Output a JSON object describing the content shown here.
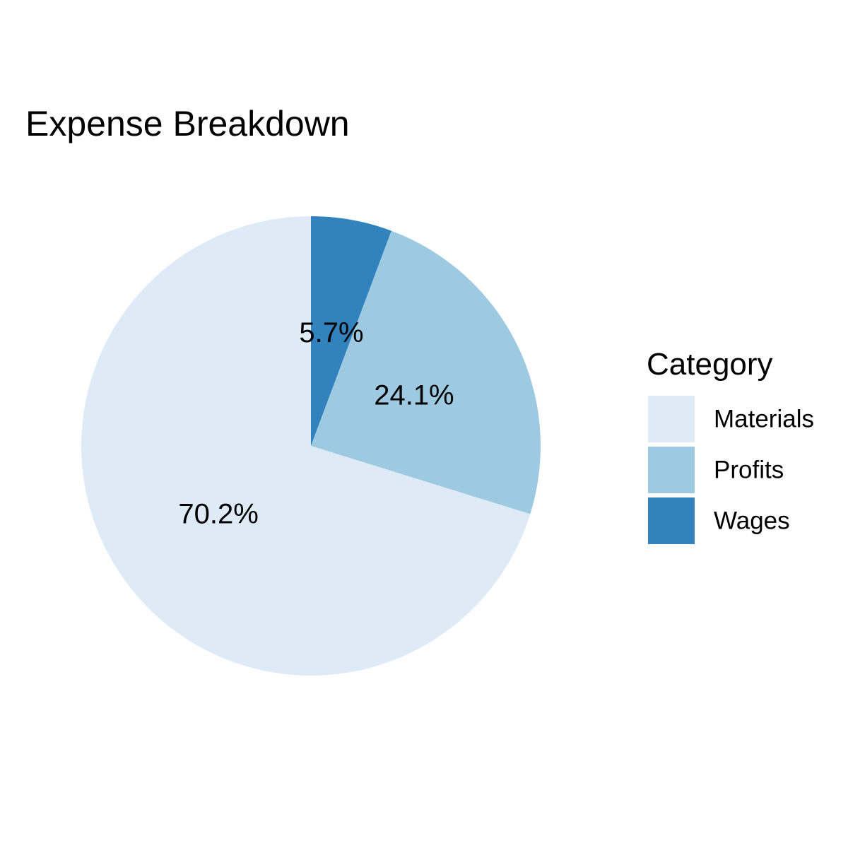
{
  "chart_data": {
    "type": "pie",
    "title": "Expense Breakdown",
    "legend_title": "Category",
    "legend_position": "right",
    "categories": [
      "Materials",
      "Profits",
      "Wages"
    ],
    "values": [
      70.2,
      24.1,
      5.7
    ],
    "labels": [
      "70.2%",
      "24.1%",
      "5.7%"
    ],
    "colors": [
      "#deebf7",
      "#9ecae1",
      "#3182bd"
    ],
    "start": "top",
    "direction": "counterclockwise"
  }
}
